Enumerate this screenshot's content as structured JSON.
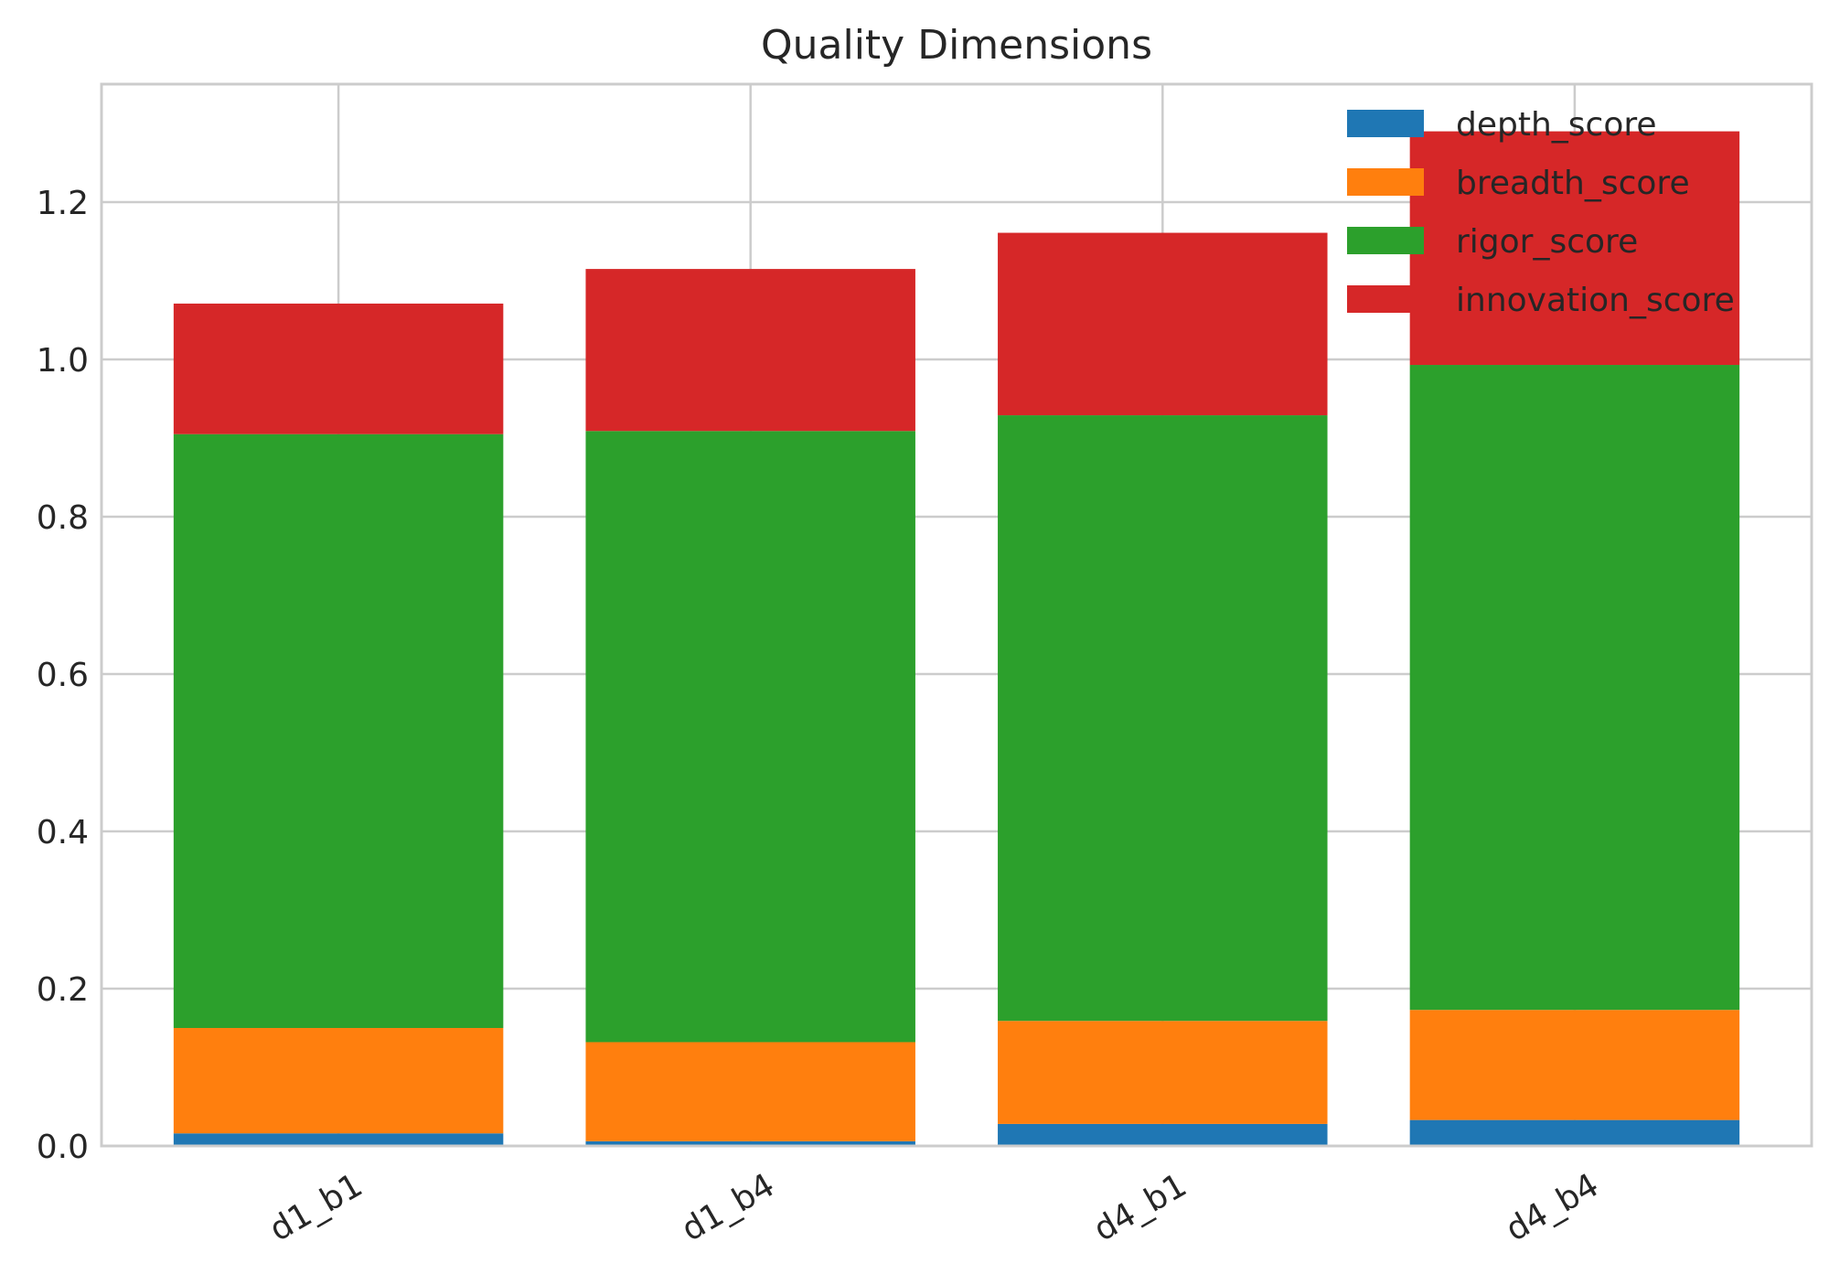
{
  "chart_data": {
    "type": "bar",
    "stacked": true,
    "title": "Quality Dimensions",
    "xlabel": "",
    "ylabel": "",
    "categories": [
      "d1_b1",
      "d1_b4",
      "d4_b1",
      "d4_b4"
    ],
    "series": [
      {
        "name": "depth_score",
        "color": "#1f77b4",
        "values": [
          0.016,
          0.006,
          0.028,
          0.033
        ]
      },
      {
        "name": "breadth_score",
        "color": "#ff7f0e",
        "values": [
          0.134,
          0.126,
          0.131,
          0.14
        ]
      },
      {
        "name": "rigor_score",
        "color": "#2ca02c",
        "values": [
          0.755,
          0.777,
          0.77,
          0.82
        ]
      },
      {
        "name": "innovation_score",
        "color": "#d62728",
        "values": [
          0.166,
          0.206,
          0.232,
          0.297
        ]
      }
    ],
    "ylim": [
      0,
      1.35
    ],
    "yticks": [
      "0.0",
      "0.2",
      "0.4",
      "0.6",
      "0.8",
      "1.0",
      "1.2"
    ],
    "grid": true,
    "legend_position": "top-right"
  }
}
